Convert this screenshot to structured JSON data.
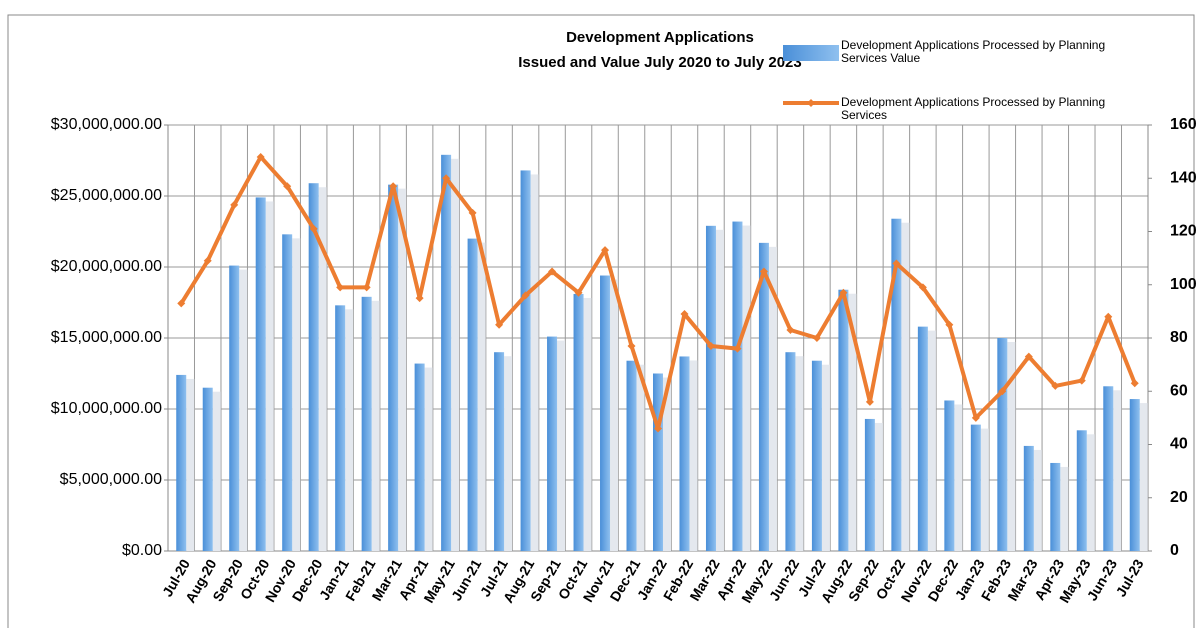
{
  "chart_data": {
    "type": "bar_line",
    "title": "Development Applications",
    "subtitle": "Issued and  Value July 2020 to July 2023",
    "categories": [
      "Jul-20",
      "Aug-20",
      "Sep-20",
      "Oct-20",
      "Nov-20",
      "Dec-20",
      "Jan-21",
      "Feb-21",
      "Mar-21",
      "Apr-21",
      "May-21",
      "Jun-21",
      "Jul-21",
      "Aug-21",
      "Sep-21",
      "Oct-21",
      "Nov-21",
      "Dec-21",
      "Jan-22",
      "Feb-22",
      "Mar-22",
      "Apr-22",
      "May-22",
      "Jun-22",
      "Jul-22",
      "Aug-22",
      "Sep-22",
      "Oct-22",
      "Nov-22",
      "Dec-22",
      "Jan-23",
      "Feb-23",
      "Mar-23",
      "Apr-23",
      "May-23",
      "Jun-23",
      "Jul-23"
    ],
    "series": [
      {
        "name": "Development Applications Processed by Planning Services Value",
        "type": "bar",
        "color": "#4a8fd8",
        "values": [
          12400000,
          11500000,
          20100000,
          24900000,
          22300000,
          25900000,
          17300000,
          17900000,
          25800000,
          13200000,
          27900000,
          22000000,
          14000000,
          26800000,
          15100000,
          18100000,
          19400000,
          13400000,
          12500000,
          13700000,
          22900000,
          23200000,
          21700000,
          14000000,
          13400000,
          18400000,
          9300000,
          23400000,
          15800000,
          10600000,
          8900000,
          15000000,
          7400000,
          6200000,
          8500000,
          11600000,
          10700000
        ]
      },
      {
        "name": "Development Applications Processed by Planning Services",
        "type": "line",
        "axis": "y2",
        "color": "#ed7d31",
        "values": [
          93,
          109,
          130,
          148,
          137,
          121,
          99,
          99,
          137,
          95,
          140,
          127,
          85,
          96,
          105,
          97,
          113,
          77,
          46,
          89,
          77,
          76,
          105,
          83,
          80,
          97,
          56,
          108,
          99,
          85,
          50,
          60,
          73,
          62,
          64,
          88,
          63
        ]
      }
    ],
    "ylim": [
      0,
      30000000
    ],
    "yticks": [
      {
        "value": 0,
        "label": "$0.00"
      },
      {
        "value": 5000000,
        "label": "$5,000,000.00"
      },
      {
        "value": 10000000,
        "label": "$10,000,000.00"
      },
      {
        "value": 15000000,
        "label": "$15,000,000.00"
      },
      {
        "value": 20000000,
        "label": "$20,000,000.00"
      },
      {
        "value": 25000000,
        "label": "$25,000,000.00"
      },
      {
        "value": 30000000,
        "label": "$30,000,000.00"
      }
    ],
    "y2lim": [
      0,
      160
    ],
    "y2ticks": [
      0,
      20,
      40,
      60,
      80,
      100,
      120,
      140,
      160
    ],
    "grid": true
  }
}
